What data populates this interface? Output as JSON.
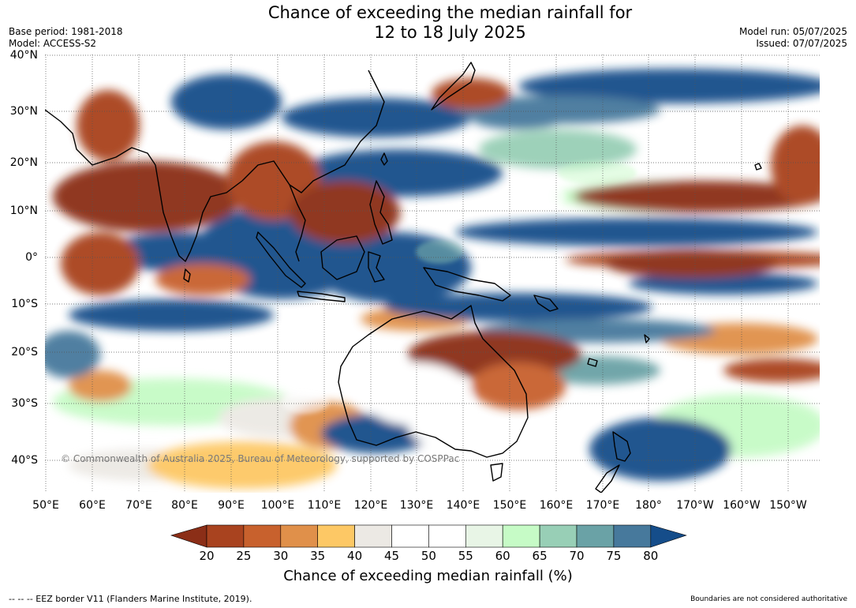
{
  "title_line1": "Chance of exceeding the median rainfall for",
  "title_line2": "12 to 18 July 2025",
  "base_period": "Base period: 1981-2018",
  "model": "Model: ACCESS-S2",
  "model_run": "Model run: 05/07/2025",
  "issued": "Issued: 07/07/2025",
  "copyright": "© Commonwealth of Australia 2025, Bureau of Meteorology, supported by COSPPac",
  "lat_labels": [
    "40°N",
    "30°N",
    "20°N",
    "10°N",
    "0°",
    "10°S",
    "20°S",
    "30°S",
    "40°S"
  ],
  "lon_labels": [
    "50°E",
    "60°E",
    "70°E",
    "80°E",
    "90°E",
    "100°E",
    "110°E",
    "120°E",
    "130°E",
    "140°E",
    "150°E",
    "160°E",
    "170°E",
    "180°",
    "170°W",
    "160°W",
    "150°W"
  ],
  "colorbar": {
    "title": "Chance of exceeding median rainfall (%)",
    "ticks": [
      "20",
      "25",
      "30",
      "35",
      "40",
      "45",
      "50",
      "55",
      "60",
      "65",
      "70",
      "75",
      "80"
    ],
    "colors": [
      "#8b2e17",
      "#a9431f",
      "#c8612d",
      "#e0904a",
      "#fdc865",
      "#ece9e4",
      "#ffffff",
      "#ffffff",
      "#e8f5e6",
      "#c6fbc6",
      "#98cfb6",
      "#6aa2a6",
      "#47799c",
      "#154d8a"
    ]
  },
  "footer_left": "--  --  -- EEZ border V11 (Flanders Marine Institute, 2019).",
  "footer_right": "Boundaries are not considered authoritative"
}
